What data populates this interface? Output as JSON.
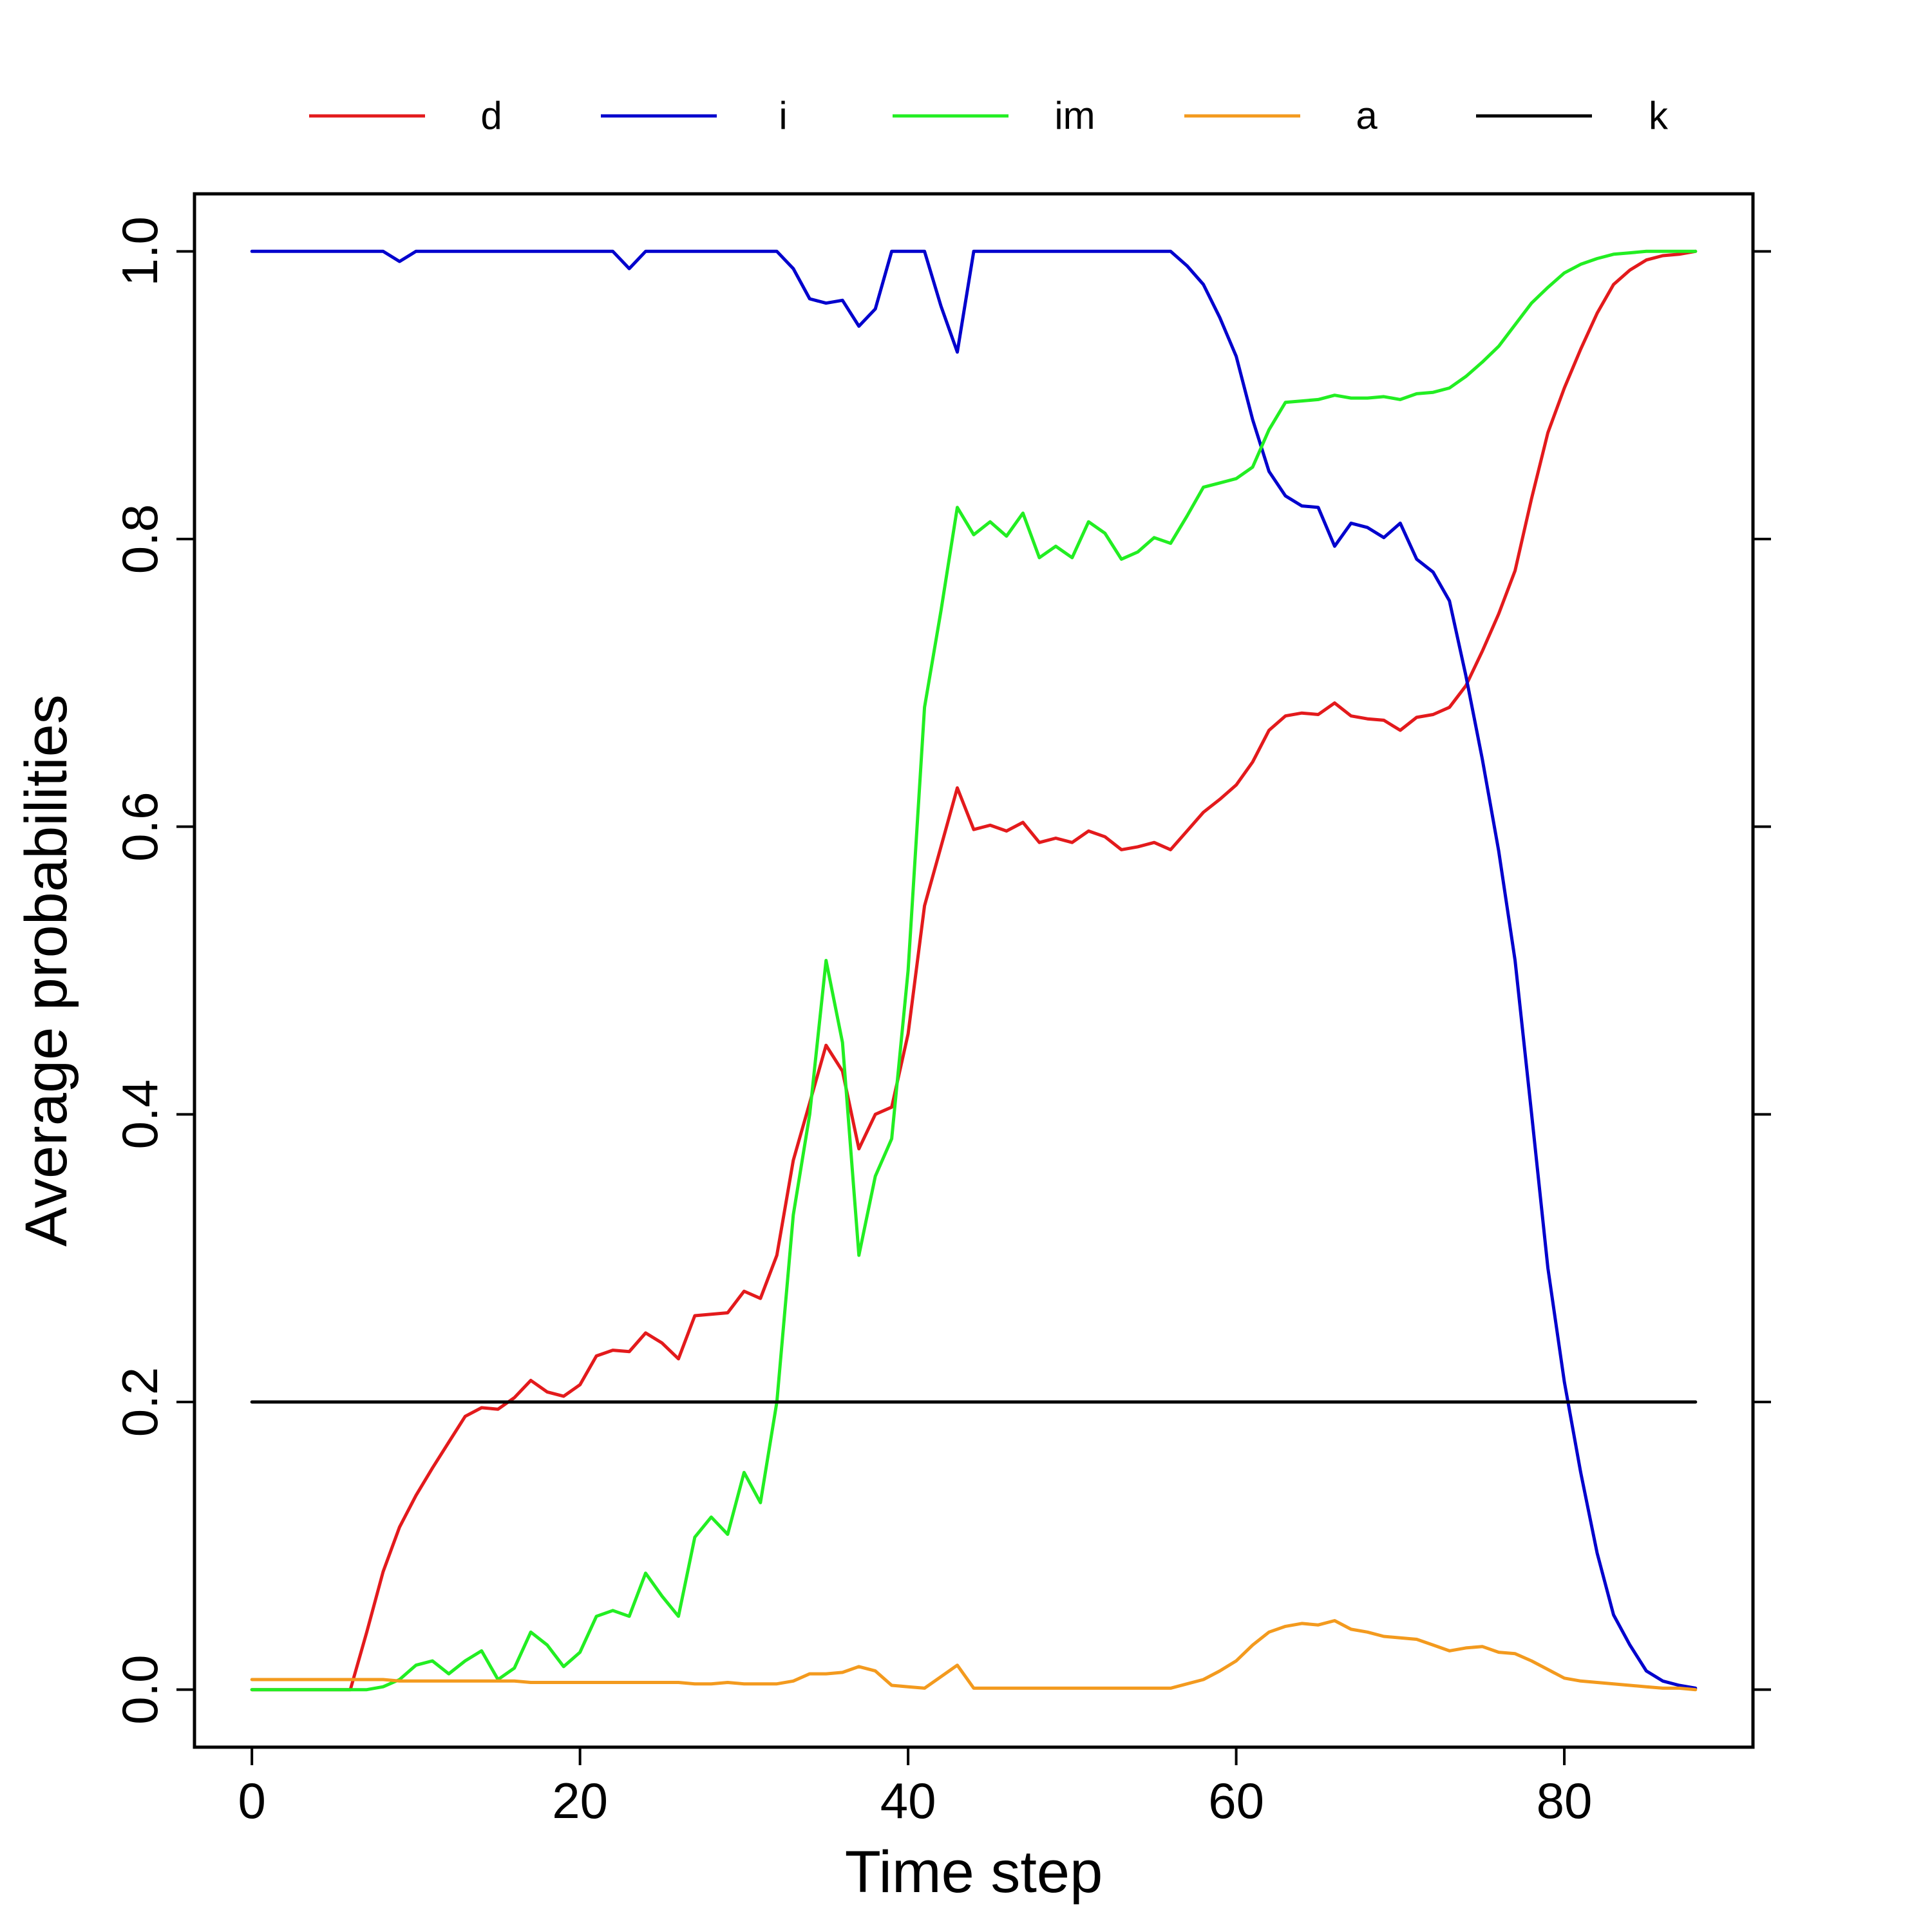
{
  "chart_data": {
    "type": "line",
    "title": "",
    "xlabel": "Time step",
    "ylabel": "Average probabilities",
    "xlim": [
      -3.5,
      91.5
    ],
    "ylim": [
      -0.04,
      1.04
    ],
    "xticks": [
      0,
      20,
      40,
      60,
      80
    ],
    "yticks": [
      0.0,
      0.2,
      0.4,
      0.6,
      0.8,
      1.0
    ],
    "xtick_labels": [
      "0",
      "20",
      "40",
      "60",
      "80"
    ],
    "ytick_labels": [
      "0.0",
      "0.2",
      "0.4",
      "0.6",
      "0.8",
      "1.0"
    ],
    "grid": false,
    "legend_position": "top",
    "x": [
      0,
      1,
      2,
      3,
      4,
      5,
      6,
      7,
      8,
      9,
      10,
      11,
      12,
      13,
      14,
      15,
      16,
      17,
      18,
      19,
      20,
      21,
      22,
      23,
      24,
      25,
      26,
      27,
      28,
      29,
      30,
      31,
      32,
      33,
      34,
      35,
      36,
      37,
      38,
      39,
      40,
      41,
      42,
      43,
      44,
      45,
      46,
      47,
      48,
      49,
      50,
      51,
      52,
      53,
      54,
      55,
      56,
      57,
      58,
      59,
      60,
      61,
      62,
      63,
      64,
      65,
      66,
      67,
      68,
      69,
      70,
      71,
      72,
      73,
      74,
      75,
      76,
      77,
      78,
      79,
      80,
      81,
      82,
      83,
      84,
      85,
      86,
      87,
      88
    ],
    "series": [
      {
        "name": "d",
        "color": "#e31a1c",
        "values": [
          0,
          0,
          0,
          0,
          0,
          0,
          0,
          0.04,
          0.082,
          0.113,
          0.135,
          0.154,
          0.172,
          0.19,
          0.196,
          0.195,
          0.203,
          0.215,
          0.207,
          0.204,
          0.212,
          0.232,
          0.236,
          0.235,
          0.248,
          0.241,
          0.23,
          0.26,
          0.261,
          0.262,
          0.277,
          0.272,
          0.302,
          0.368,
          0.408,
          0.448,
          0.43,
          0.376,
          0.4,
          0.405,
          0.456,
          0.545,
          0.586,
          0.627,
          0.598,
          0.601,
          0.597,
          0.603,
          0.589,
          0.592,
          0.589,
          0.597,
          0.593,
          0.584,
          0.586,
          0.589,
          0.584,
          0.597,
          0.61,
          0.619,
          0.629,
          0.645,
          0.667,
          0.677,
          0.679,
          0.678,
          0.686,
          0.677,
          0.675,
          0.674,
          0.667,
          0.676,
          0.678,
          0.683,
          0.698,
          0.722,
          0.748,
          0.778,
          0.828,
          0.874,
          0.905,
          0.932,
          0.957,
          0.977,
          0.987,
          0.994,
          0.997,
          0.998,
          1.0
        ]
      },
      {
        "name": "i",
        "color": "#0000cd",
        "values": [
          1,
          1,
          1,
          1,
          1,
          1,
          1,
          1,
          1,
          0.993,
          1,
          1,
          1,
          1,
          1,
          1,
          1,
          1,
          1,
          1,
          1,
          1,
          1,
          0.988,
          1,
          1,
          1,
          1,
          1,
          1,
          1,
          1,
          1,
          0.988,
          0.967,
          0.964,
          0.966,
          0.948,
          0.96,
          1,
          1,
          1,
          0.962,
          0.93,
          1,
          1,
          1,
          1,
          1,
          1,
          1,
          1,
          1,
          1,
          1,
          1,
          1,
          0.99,
          0.977,
          0.954,
          0.927,
          0.883,
          0.847,
          0.83,
          0.823,
          0.822,
          0.795,
          0.811,
          0.808,
          0.801,
          0.811,
          0.786,
          0.777,
          0.757,
          0.705,
          0.647,
          0.583,
          0.507,
          0.401,
          0.293,
          0.214,
          0.151,
          0.095,
          0.052,
          0.031,
          0.013,
          0.006,
          0.003,
          0.001
        ]
      },
      {
        "name": "im",
        "color": "#22ee22",
        "values": [
          0,
          0,
          0,
          0,
          0,
          0,
          0,
          0,
          0.002,
          0.007,
          0.017,
          0.02,
          0.011,
          0.02,
          0.027,
          0.007,
          0.015,
          0.04,
          0.031,
          0.016,
          0.026,
          0.051,
          0.055,
          0.051,
          0.081,
          0.065,
          0.051,
          0.106,
          0.12,
          0.108,
          0.151,
          0.13,
          0.2,
          0.33,
          0.4,
          0.507,
          0.45,
          0.302,
          0.357,
          0.383,
          0.5,
          0.683,
          0.75,
          0.822,
          0.803,
          0.812,
          0.802,
          0.818,
          0.787,
          0.795,
          0.787,
          0.812,
          0.804,
          0.786,
          0.791,
          0.801,
          0.797,
          0.816,
          0.836,
          0.839,
          0.842,
          0.85,
          0.876,
          0.895,
          0.896,
          0.897,
          0.9,
          0.898,
          0.898,
          0.899,
          0.897,
          0.901,
          0.902,
          0.905,
          0.913,
          0.923,
          0.934,
          0.949,
          0.964,
          0.975,
          0.985,
          0.991,
          0.995,
          0.998,
          0.999,
          1.0,
          1.0,
          1.0,
          1.0
        ]
      },
      {
        "name": "a",
        "color": "#f39a1e",
        "values": [
          0.007,
          0.007,
          0.007,
          0.007,
          0.007,
          0.007,
          0.007,
          0.007,
          0.007,
          0.006,
          0.006,
          0.006,
          0.006,
          0.006,
          0.006,
          0.006,
          0.006,
          0.005,
          0.005,
          0.005,
          0.005,
          0.005,
          0.005,
          0.005,
          0.005,
          0.005,
          0.005,
          0.004,
          0.004,
          0.005,
          0.004,
          0.004,
          0.004,
          0.006,
          0.011,
          0.011,
          0.012,
          0.016,
          0.013,
          0.003,
          0.002,
          0.001,
          0.009,
          0.017,
          0.001,
          0.001,
          0.001,
          0.001,
          0.001,
          0.001,
          0.001,
          0.001,
          0.001,
          0.001,
          0.001,
          0.001,
          0.001,
          0.004,
          0.007,
          0.013,
          0.02,
          0.031,
          0.04,
          0.044,
          0.046,
          0.045,
          0.048,
          0.042,
          0.04,
          0.037,
          0.036,
          0.035,
          0.031,
          0.027,
          0.029,
          0.03,
          0.026,
          0.025,
          0.02,
          0.014,
          0.008,
          0.006,
          0.005,
          0.004,
          0.003,
          0.002,
          0.001,
          0.001,
          0.0
        ]
      },
      {
        "name": "k",
        "color": "#000000",
        "values": [
          0.2,
          0.2,
          0.2,
          0.2,
          0.2,
          0.2,
          0.2,
          0.2,
          0.2,
          0.2,
          0.2,
          0.2,
          0.2,
          0.2,
          0.2,
          0.2,
          0.2,
          0.2,
          0.2,
          0.2,
          0.2,
          0.2,
          0.2,
          0.2,
          0.2,
          0.2,
          0.2,
          0.2,
          0.2,
          0.2,
          0.2,
          0.2,
          0.2,
          0.2,
          0.2,
          0.2,
          0.2,
          0.2,
          0.2,
          0.2,
          0.2,
          0.2,
          0.2,
          0.2,
          0.2,
          0.2,
          0.2,
          0.2,
          0.2,
          0.2,
          0.2,
          0.2,
          0.2,
          0.2,
          0.2,
          0.2,
          0.2,
          0.2,
          0.2,
          0.2,
          0.2,
          0.2,
          0.2,
          0.2,
          0.2,
          0.2,
          0.2,
          0.2,
          0.2,
          0.2,
          0.2,
          0.2,
          0.2,
          0.2,
          0.2,
          0.2,
          0.2,
          0.2,
          0.2,
          0.2,
          0.2,
          0.2,
          0.2,
          0.2,
          0.2,
          0.2,
          0.2,
          0.2,
          0.2
        ]
      }
    ]
  }
}
